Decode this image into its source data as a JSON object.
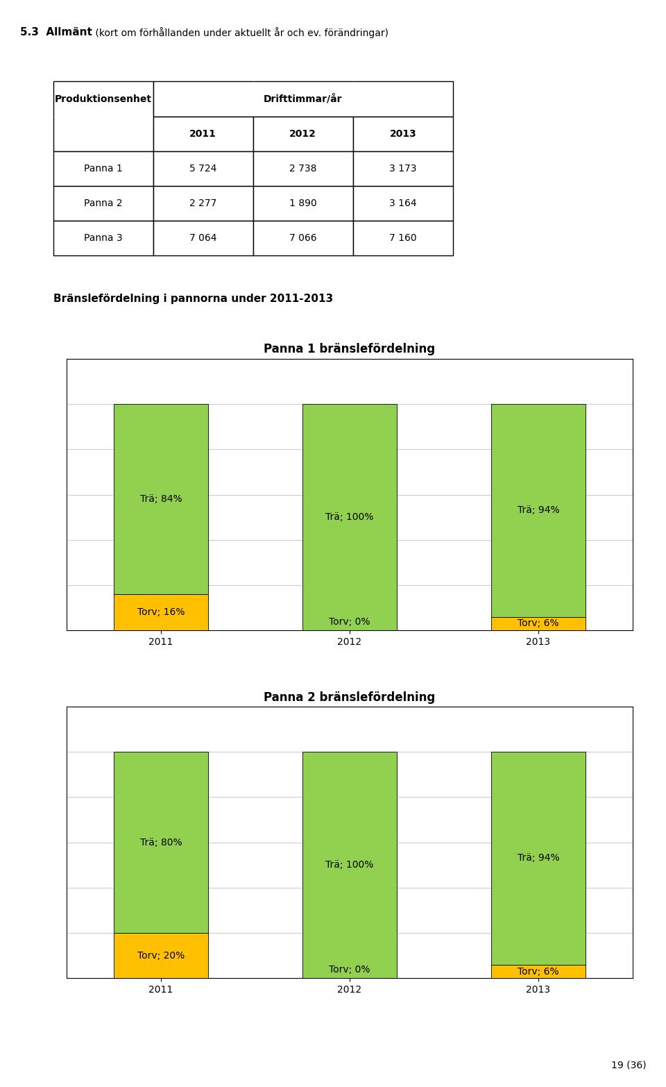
{
  "title": "5.3  Allmänt",
  "subtitle": " (kort om förhållanden under aktuellt år och ev. förändringar)",
  "table": {
    "header": [
      "Produktionsenhet",
      "Drifttimmar/år"
    ],
    "columns": [
      "2011",
      "2012",
      "2013"
    ],
    "rows": [
      [
        "Panna 1",
        "5 724",
        "2 738",
        "3 173"
      ],
      [
        "Panna 2",
        "2 277",
        "1 890",
        "3 164"
      ],
      [
        "Panna 3",
        "7 064",
        "7 066",
        "7 160"
      ]
    ]
  },
  "annotations": [
    "Bränslefördelning i pannorna under 2011-2013",
    "19 (36)"
  ],
  "chart_data": [
    {
      "type": "bar",
      "title": "Panna 1 bränslefördelning",
      "categories": [
        "2011",
        "2012",
        "2013"
      ],
      "stacked": true,
      "data_labels": true,
      "grid": true,
      "tick_labels": "x",
      "ylim": [
        0,
        120
      ],
      "yticks": [
        0,
        20,
        40,
        60,
        80,
        100,
        120
      ],
      "series": [
        {
          "name": "Torv",
          "color": "#ffc000",
          "values": [
            16,
            0,
            6
          ],
          "value_labels": [
            "Torv; 16%",
            "Torv; 0%",
            "Torv; 6%"
          ]
        },
        {
          "name": "Trä",
          "color": "#92d050",
          "values": [
            84,
            100,
            94
          ],
          "value_labels": [
            "Trä; 84%",
            "Trä; 100%",
            "Trä; 94%"
          ]
        }
      ]
    },
    {
      "type": "bar",
      "title": "Panna 2 bränslefördelning",
      "categories": [
        "2011",
        "2012",
        "2013"
      ],
      "stacked": true,
      "data_labels": true,
      "grid": true,
      "tick_labels": "x",
      "ylim": [
        0,
        120
      ],
      "yticks": [
        0,
        20,
        40,
        60,
        80,
        100,
        120
      ],
      "series": [
        {
          "name": "Torv",
          "color": "#ffc000",
          "values": [
            20,
            0,
            6
          ],
          "value_labels": [
            "Torv; 20%",
            "Torv; 0%",
            "Torv; 6%"
          ]
        },
        {
          "name": "Trä",
          "color": "#92d050",
          "values": [
            80,
            100,
            94
          ],
          "value_labels": [
            "Trä; 80%",
            "Trä; 100%",
            "Trä; 94%"
          ]
        }
      ]
    }
  ]
}
